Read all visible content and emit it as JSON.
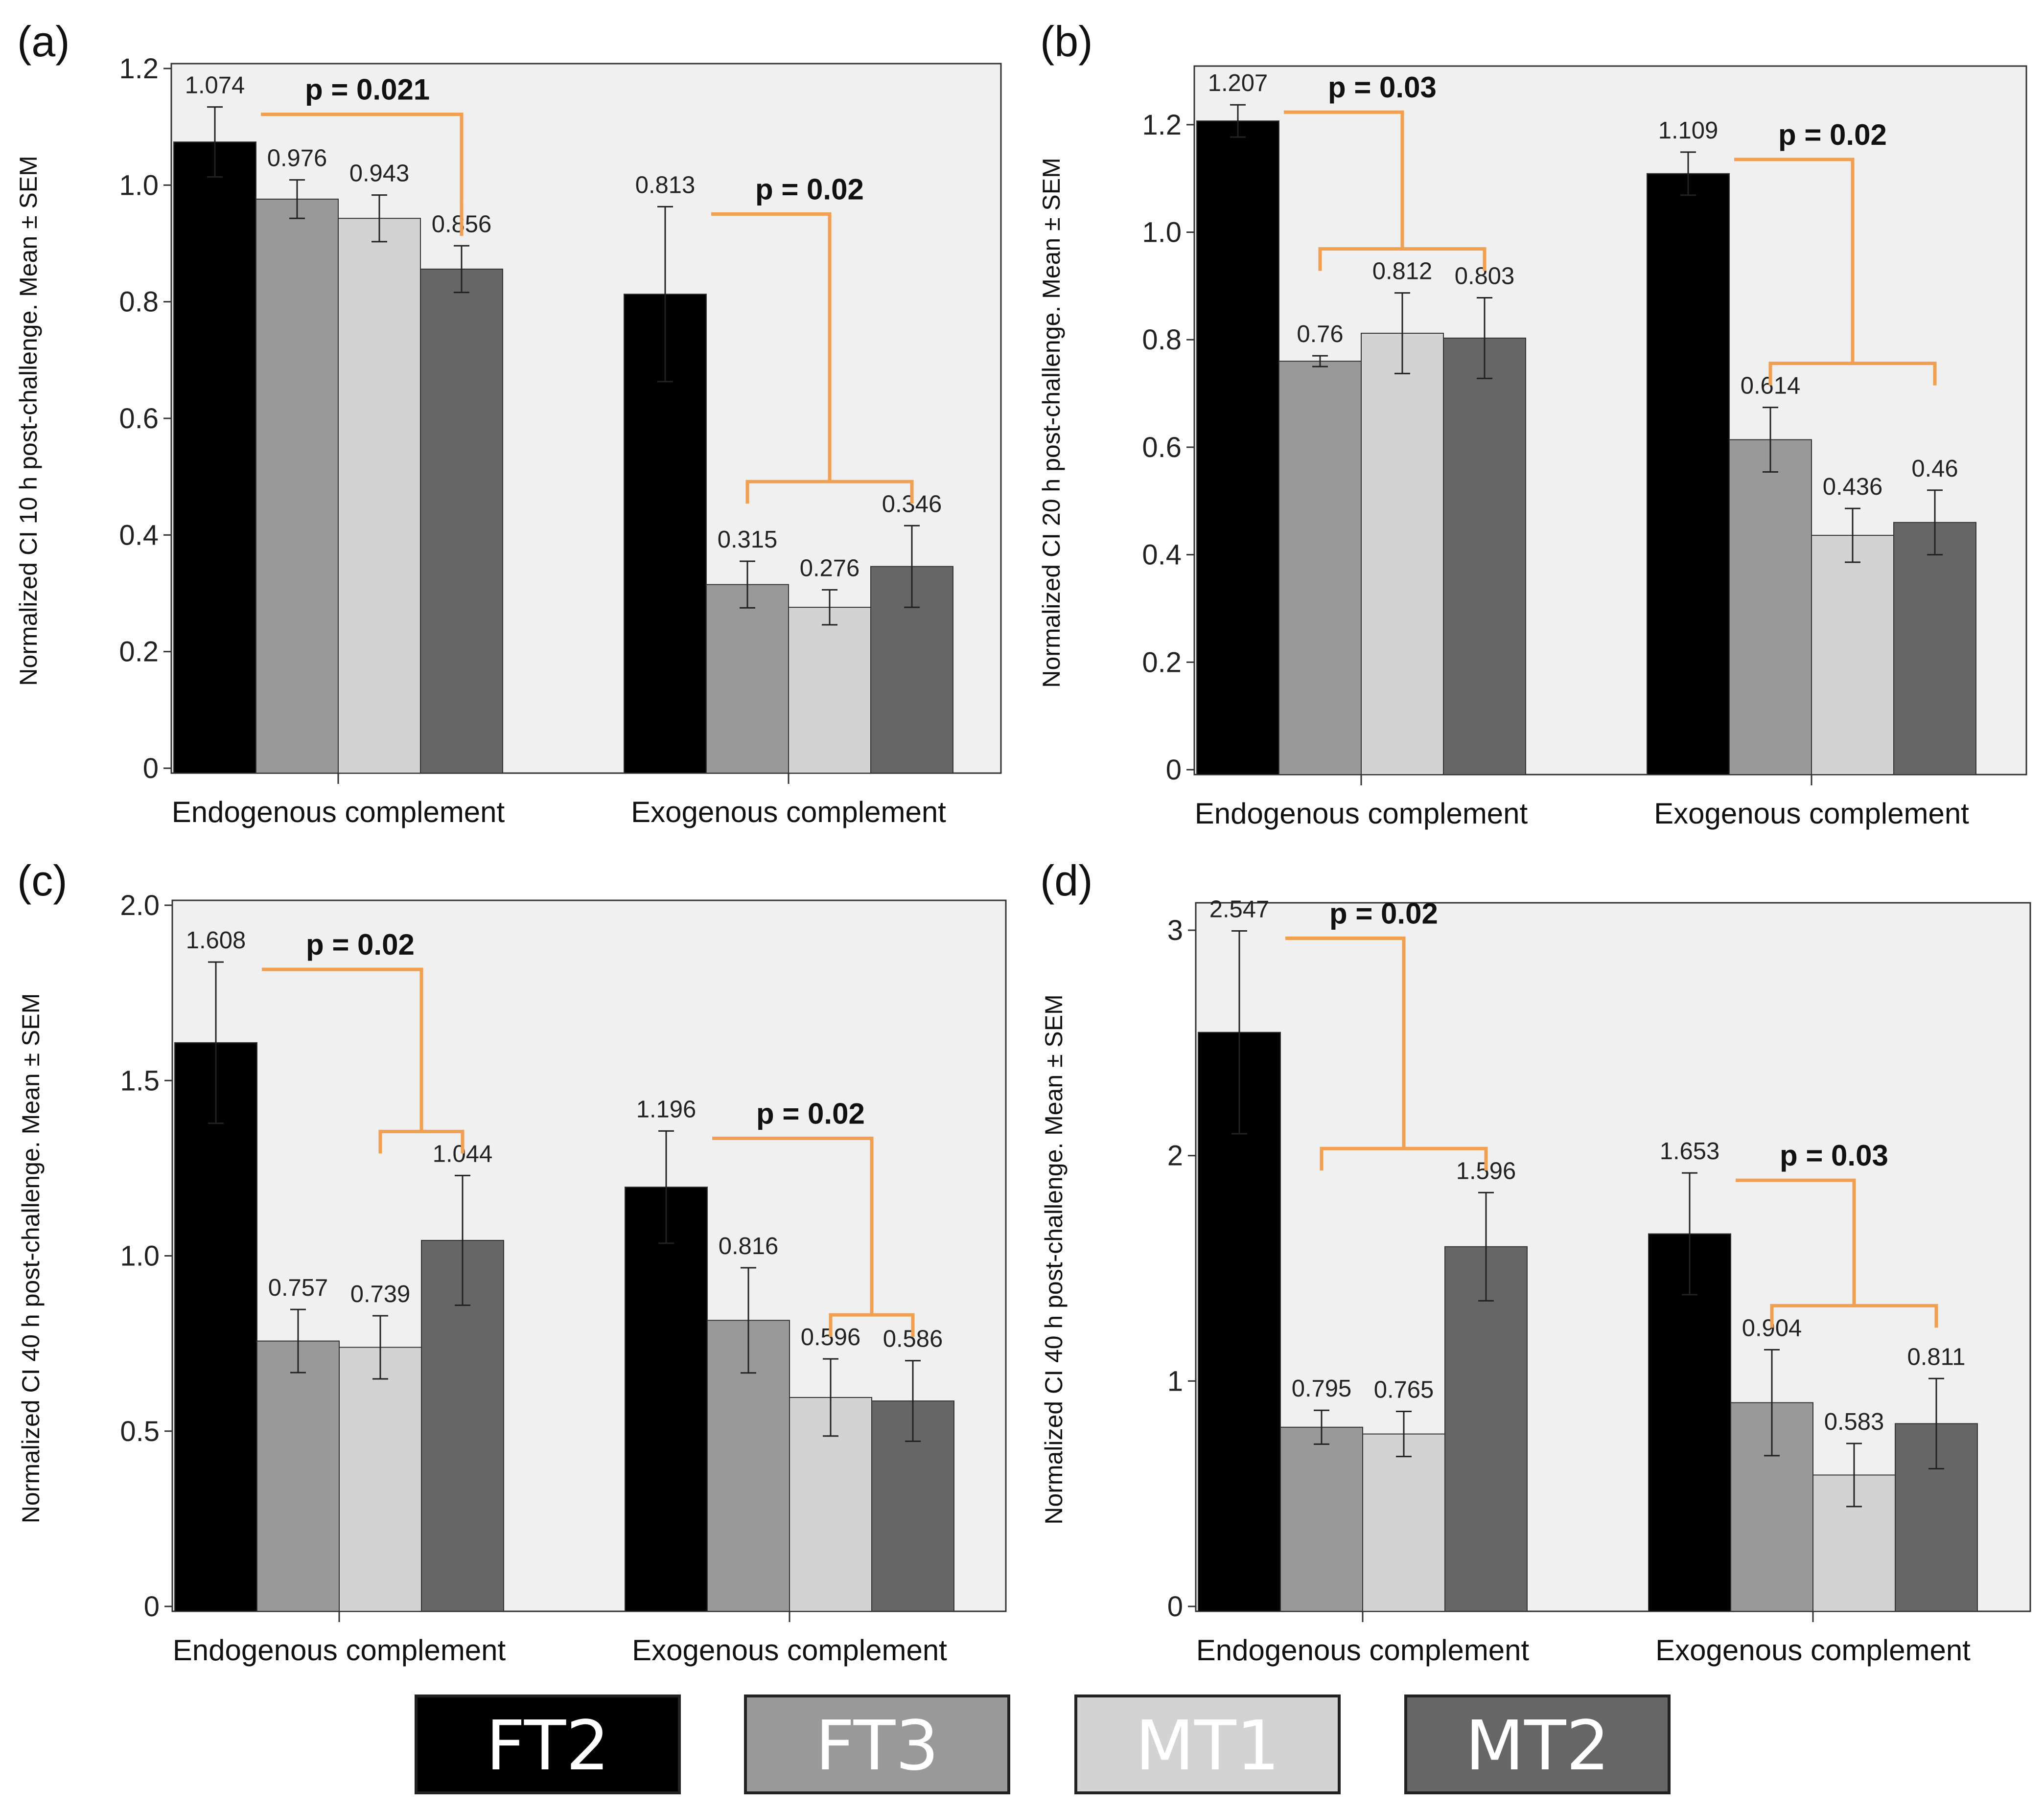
{
  "chart_data": [
    {
      "type": "bar",
      "panel": "(a)",
      "ylabel": "Normalized CI 10 h post-challenge. Mean ± SEM",
      "ylim": [
        0,
        1.2
      ],
      "yticks": [
        0,
        0.2,
        0.4,
        0.6,
        0.8,
        1.0,
        1.2
      ],
      "yticklabels": [
        "0",
        "0.2",
        "0.4",
        "0.6",
        "0.8",
        "1.0",
        "1.2"
      ],
      "categories": [
        "Endogenous complement",
        "Exogenous complement"
      ],
      "series": [
        {
          "name": "FT2",
          "values": [
            1.074,
            0.813
          ],
          "sem": [
            0.06,
            0.15
          ],
          "labels": [
            "1.074",
            "0.813"
          ]
        },
        {
          "name": "FT3",
          "values": [
            0.976,
            0.315
          ],
          "sem": [
            0.033,
            0.04
          ],
          "labels": [
            "0.976",
            "0.315"
          ]
        },
        {
          "name": "MT1",
          "values": [
            0.943,
            0.276
          ],
          "sem": [
            0.04,
            0.03
          ],
          "labels": [
            "0.943",
            "0.276"
          ]
        },
        {
          "name": "MT2",
          "values": [
            0.856,
            0.346
          ],
          "sem": [
            0.04,
            0.07
          ],
          "labels": [
            "0.856",
            "0.346"
          ]
        }
      ],
      "annotations": [
        {
          "group": 0,
          "from": [
            0
          ],
          "to": [
            3
          ],
          "text": "p = 0.021"
        },
        {
          "group": 1,
          "from": [
            0
          ],
          "to": [
            1,
            2,
            3
          ],
          "text": "p = 0.02"
        }
      ]
    },
    {
      "type": "bar",
      "panel": "(b)",
      "ylabel": "Normalized CI 20 h post-challenge. Mean ± SEM",
      "ylim": [
        0,
        1.3
      ],
      "yticks": [
        0,
        0.2,
        0.4,
        0.6,
        0.8,
        1.0,
        1.2
      ],
      "yticklabels": [
        "0",
        "0.2",
        "0.4",
        "0.6",
        "0.8",
        "1.0",
        "1.2"
      ],
      "categories": [
        "Endogenous complement",
        "Exogenous complement"
      ],
      "series": [
        {
          "name": "FT2",
          "values": [
            1.207,
            1.109
          ],
          "sem": [
            0.03,
            0.04
          ],
          "labels": [
            "1.207",
            "1.109"
          ]
        },
        {
          "name": "FT3",
          "values": [
            0.76,
            0.614
          ],
          "sem": [
            0.01,
            0.06
          ],
          "labels": [
            "0.76",
            "0.614"
          ]
        },
        {
          "name": "MT1",
          "values": [
            0.812,
            0.436
          ],
          "sem": [
            0.075,
            0.05
          ],
          "labels": [
            "0.812",
            "0.436"
          ]
        },
        {
          "name": "MT2",
          "values": [
            0.803,
            0.46
          ],
          "sem": [
            0.075,
            0.06
          ],
          "labels": [
            "0.803",
            "0.46"
          ]
        }
      ],
      "annotations": [
        {
          "group": 0,
          "from": [
            0
          ],
          "to": [
            1,
            2,
            3
          ],
          "text": "p = 0.03"
        },
        {
          "group": 1,
          "from": [
            0
          ],
          "to": [
            1,
            2,
            3
          ],
          "text": "p = 0.02"
        }
      ]
    },
    {
      "type": "bar",
      "panel": "(c)",
      "ylabel": "Normalized CI 40 h post-challenge. Mean ± SEM",
      "ylim": [
        0,
        2.0
      ],
      "yticks": [
        0,
        0.5,
        1.0,
        1.5,
        2.0
      ],
      "yticklabels": [
        "0",
        "0.5",
        "1.0",
        "1.5",
        "2.0"
      ],
      "categories": [
        "Endogenous complement",
        "Exogenous complement"
      ],
      "series": [
        {
          "name": "FT2",
          "values": [
            1.608,
            1.196
          ],
          "sem": [
            0.23,
            0.16
          ],
          "labels": [
            "1.608",
            "1.196"
          ]
        },
        {
          "name": "FT3",
          "values": [
            0.757,
            0.816
          ],
          "sem": [
            0.09,
            0.15
          ],
          "labels": [
            "0.757",
            "0.816"
          ]
        },
        {
          "name": "MT1",
          "values": [
            0.739,
            0.596
          ],
          "sem": [
            0.09,
            0.11
          ],
          "labels": [
            "0.739",
            "0.596"
          ]
        },
        {
          "name": "MT2",
          "values": [
            1.044,
            0.586
          ],
          "sem": [
            0.185,
            0.115
          ],
          "labels": [
            "1.044",
            "0.586"
          ]
        }
      ],
      "annotations": [
        {
          "group": 0,
          "from": [
            0
          ],
          "to": [
            2,
            3
          ],
          "text": "p = 0.02"
        },
        {
          "group": 1,
          "from": [
            0
          ],
          "to": [
            2,
            3
          ],
          "text": "p = 0.02"
        }
      ]
    },
    {
      "type": "bar",
      "panel": "(d)",
      "ylabel": "Normalized CI 40 h post-challenge. Mean ± SEM",
      "ylim": [
        0,
        3.1
      ],
      "yticks": [
        0,
        1,
        2,
        3
      ],
      "yticklabels": [
        "0",
        "1",
        "2",
        "3"
      ],
      "categories": [
        "Endogenous complement",
        "Exogenous complement"
      ],
      "series": [
        {
          "name": "FT2",
          "values": [
            2.547,
            1.653
          ],
          "sem": [
            0.45,
            0.27
          ],
          "labels": [
            "2.547",
            "1.653"
          ]
        },
        {
          "name": "FT3",
          "values": [
            0.795,
            0.904
          ],
          "sem": [
            0.075,
            0.235
          ],
          "labels": [
            "0.795",
            "0.904"
          ]
        },
        {
          "name": "MT1",
          "values": [
            0.765,
            0.583
          ],
          "sem": [
            0.1,
            0.14
          ],
          "labels": [
            "0.765",
            "0.583"
          ]
        },
        {
          "name": "MT2",
          "values": [
            1.596,
            0.811
          ],
          "sem": [
            0.24,
            0.2
          ],
          "labels": [
            "1.596",
            "0.811"
          ]
        }
      ],
      "annotations": [
        {
          "group": 0,
          "from": [
            0
          ],
          "to": [
            1,
            2,
            3
          ],
          "text": "p = 0.02"
        },
        {
          "group": 1,
          "from": [
            0
          ],
          "to": [
            1,
            2,
            3
          ],
          "text": "p = 0.03"
        }
      ]
    }
  ],
  "legend": [
    {
      "name": "FT2",
      "color": "#000000"
    },
    {
      "name": "FT3",
      "color": "#999999"
    },
    {
      "name": "MT1",
      "color": "#d3d3d3"
    },
    {
      "name": "MT2",
      "color": "#666666"
    }
  ],
  "colors": {
    "bars": [
      "#000000",
      "#999999",
      "#d3d3d3",
      "#666666"
    ],
    "plot_background": "#f0f0f0",
    "bracket": "#f0a050"
  }
}
